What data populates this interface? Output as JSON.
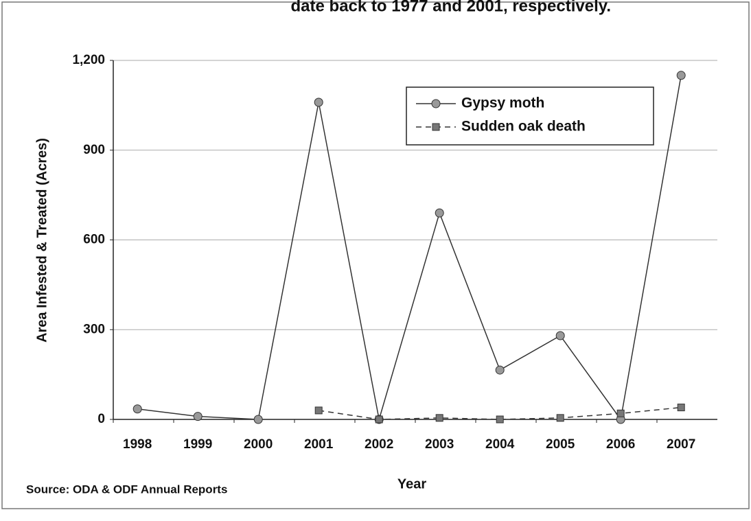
{
  "chart_data": {
    "type": "line",
    "title": "date back to 1977 and 2001, respectively.",
    "y_label": "Area Infested & Treated (Acres)",
    "x_label": "Year",
    "source": "Source: ODA & ODF Annual Reports",
    "categories": [
      "1998",
      "1999",
      "2000",
      "2001",
      "2002",
      "2003",
      "2004",
      "2005",
      "2006",
      "2007"
    ],
    "series": [
      {
        "name": "Gypsy moth",
        "color": "#999999",
        "marker": "circle",
        "dash": false,
        "values": [
          35,
          10,
          0,
          1060,
          0,
          690,
          165,
          280,
          0,
          1150
        ]
      },
      {
        "name": "Sudden oak death",
        "color": "#777777",
        "marker": "square",
        "dash": true,
        "values": [
          null,
          null,
          null,
          30,
          0,
          5,
          0,
          5,
          20,
          40
        ]
      }
    ],
    "ylim": [
      0,
      1200
    ],
    "yticks": [
      0,
      300,
      600,
      900,
      {
        "value": 1200,
        "label": "1,200"
      }
    ],
    "grid": true,
    "legend": "upper right"
  }
}
